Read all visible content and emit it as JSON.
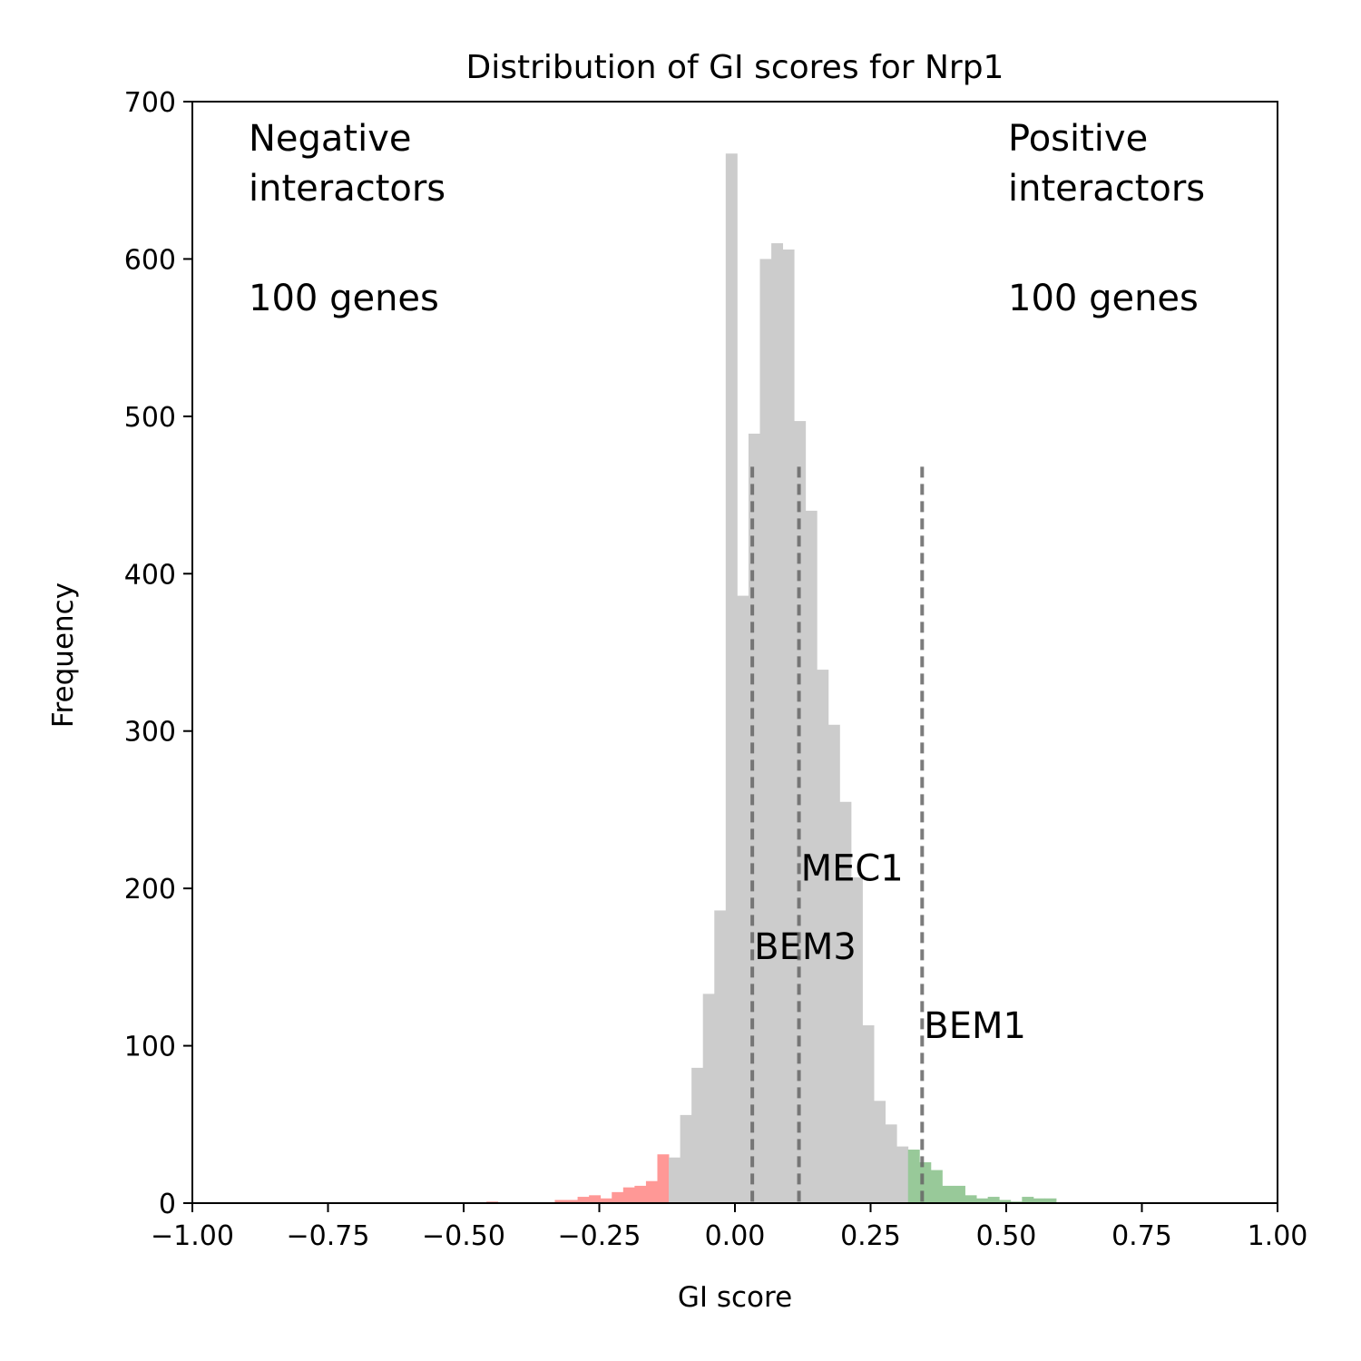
{
  "chart_data": {
    "type": "bar",
    "title": "Distribution of GI scores for Nrp1",
    "xlabel": "GI score",
    "ylabel": "Frequency",
    "xlim": [
      -1.0,
      1.0
    ],
    "ylim": [
      0,
      700
    ],
    "xticks": [
      "−1.00",
      "−0.75",
      "−0.50",
      "−0.25",
      "0.00",
      "0.25",
      "0.50",
      "0.75",
      "1.00"
    ],
    "yticks": [
      "0",
      "100",
      "200",
      "300",
      "400",
      "500",
      "600",
      "700"
    ],
    "grid": false,
    "legend": "none",
    "colors": {
      "negative": "#ff9896",
      "neutral": "#cccccc",
      "positive": "#98c999",
      "marker_line": "#666666"
    },
    "bin_width": 0.021,
    "bins": [
      {
        "x0": -0.458,
        "count": 1,
        "group": "negative"
      },
      {
        "x0": -0.332,
        "count": 2,
        "group": "negative"
      },
      {
        "x0": -0.311,
        "count": 2,
        "group": "negative"
      },
      {
        "x0": -0.29,
        "count": 4,
        "group": "negative"
      },
      {
        "x0": -0.269,
        "count": 5,
        "group": "negative"
      },
      {
        "x0": -0.248,
        "count": 3,
        "group": "negative"
      },
      {
        "x0": -0.227,
        "count": 7,
        "group": "negative"
      },
      {
        "x0": -0.206,
        "count": 10,
        "group": "negative"
      },
      {
        "x0": -0.185,
        "count": 11,
        "group": "negative"
      },
      {
        "x0": -0.164,
        "count": 14,
        "group": "negative"
      },
      {
        "x0": -0.143,
        "count": 31,
        "group": "negative"
      },
      {
        "x0": -0.122,
        "count": 29,
        "group": "neutral"
      },
      {
        "x0": -0.101,
        "count": 56,
        "group": "neutral"
      },
      {
        "x0": -0.08,
        "count": 86,
        "group": "neutral"
      },
      {
        "x0": -0.059,
        "count": 133,
        "group": "neutral"
      },
      {
        "x0": -0.038,
        "count": 186,
        "group": "neutral"
      },
      {
        "x0": -0.017,
        "count": 667,
        "group": "neutral"
      },
      {
        "x0": 0.004,
        "count": 386,
        "group": "neutral"
      },
      {
        "x0": 0.025,
        "count": 489,
        "group": "neutral"
      },
      {
        "x0": 0.046,
        "count": 600,
        "group": "neutral"
      },
      {
        "x0": 0.067,
        "count": 610,
        "group": "neutral"
      },
      {
        "x0": 0.088,
        "count": 606,
        "group": "neutral"
      },
      {
        "x0": 0.109,
        "count": 497,
        "group": "neutral"
      },
      {
        "x0": 0.13,
        "count": 440,
        "group": "neutral"
      },
      {
        "x0": 0.151,
        "count": 339,
        "group": "neutral"
      },
      {
        "x0": 0.172,
        "count": 304,
        "group": "neutral"
      },
      {
        "x0": 0.193,
        "count": 255,
        "group": "neutral"
      },
      {
        "x0": 0.214,
        "count": 207,
        "group": "neutral"
      },
      {
        "x0": 0.235,
        "count": 113,
        "group": "neutral"
      },
      {
        "x0": 0.256,
        "count": 65,
        "group": "neutral"
      },
      {
        "x0": 0.277,
        "count": 50,
        "group": "neutral"
      },
      {
        "x0": 0.298,
        "count": 36,
        "group": "neutral"
      },
      {
        "x0": 0.319,
        "count": 34,
        "group": "positive"
      },
      {
        "x0": 0.34,
        "count": 26,
        "group": "positive"
      },
      {
        "x0": 0.361,
        "count": 21,
        "group": "positive"
      },
      {
        "x0": 0.382,
        "count": 11,
        "group": "positive"
      },
      {
        "x0": 0.403,
        "count": 11,
        "group": "positive"
      },
      {
        "x0": 0.424,
        "count": 5,
        "group": "positive"
      },
      {
        "x0": 0.445,
        "count": 3,
        "group": "positive"
      },
      {
        "x0": 0.466,
        "count": 4,
        "group": "positive"
      },
      {
        "x0": 0.487,
        "count": 2,
        "group": "positive"
      },
      {
        "x0": 0.508,
        "count": 1,
        "group": "positive"
      },
      {
        "x0": 0.529,
        "count": 4,
        "group": "positive"
      },
      {
        "x0": 0.55,
        "count": 3,
        "group": "positive"
      },
      {
        "x0": 0.571,
        "count": 3,
        "group": "positive"
      }
    ],
    "markers": [
      {
        "label": "BEM3",
        "x": 0.032,
        "line_top": 468,
        "label_y": 155
      },
      {
        "label": "MEC1",
        "x": 0.118,
        "line_top": 468,
        "label_y": 205
      },
      {
        "label": "BEM1",
        "x": 0.345,
        "line_top": 468,
        "label_y": 105
      }
    ],
    "annotations": {
      "negative_title_line1": "Negative",
      "negative_title_line2": "interactors",
      "negative_count": "100 genes",
      "positive_title_line1": "Positive",
      "positive_title_line2": "interactors",
      "positive_count": "100 genes"
    }
  }
}
